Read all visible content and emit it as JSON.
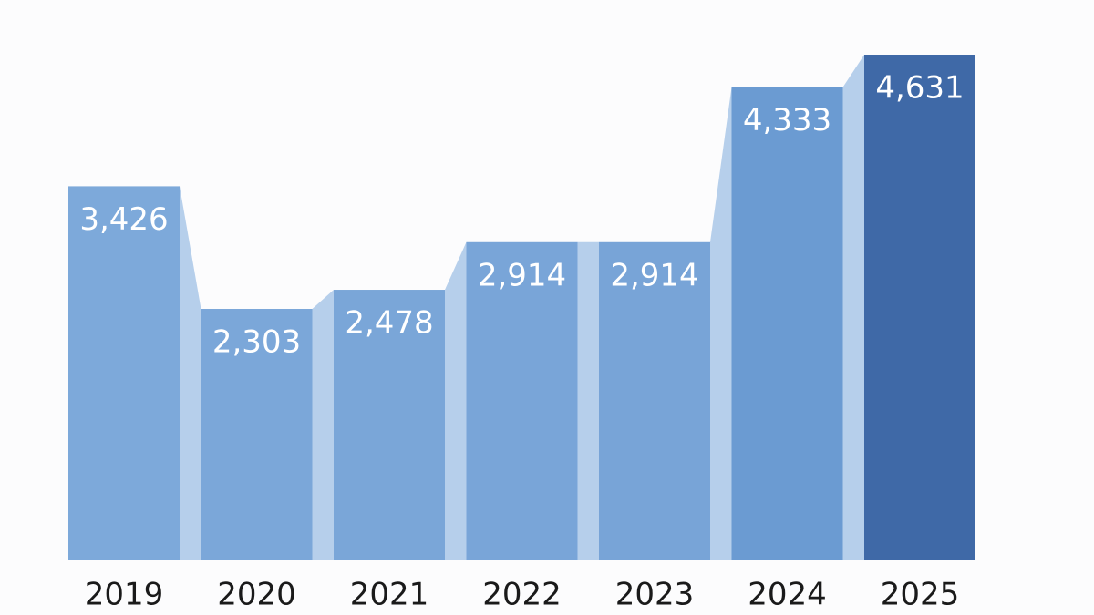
{
  "chart_data": {
    "type": "bar",
    "categories": [
      "2019",
      "2020",
      "2021",
      "2022",
      "2023",
      "2024",
      "2025"
    ],
    "values": [
      3426,
      2303,
      2478,
      2914,
      2914,
      4333,
      4631
    ],
    "value_labels": [
      "3,426",
      "2,303",
      "2,478",
      "2,914",
      "2,914",
      "4,333",
      "4,631"
    ],
    "colors": [
      "#7da9da",
      "#7ba7d9",
      "#7aa6d8",
      "#79a5d8",
      "#78a4d7",
      "#6b9bd2",
      "#3f69a7"
    ],
    "connector_color": "#b6cfeb"
  }
}
